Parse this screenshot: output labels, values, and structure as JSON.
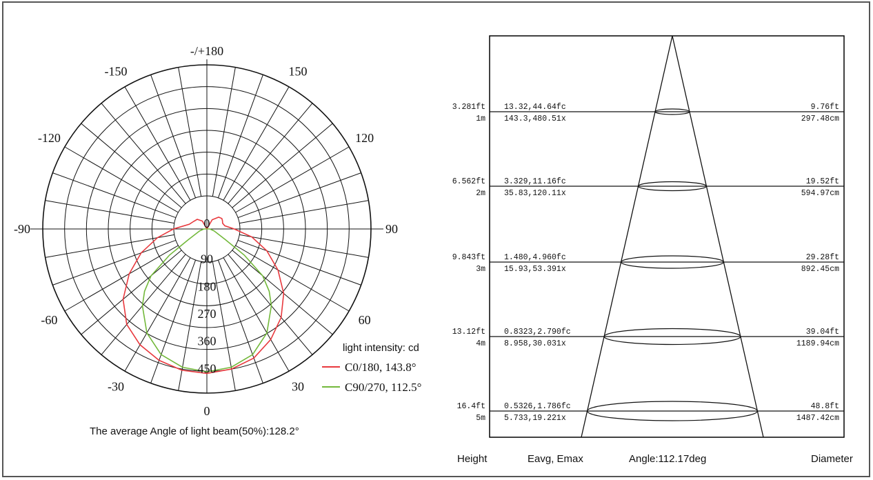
{
  "chart_data": [
    {
      "type": "polar",
      "angle_labels": [
        {
          "text": "-/+180",
          "deg": 180
        },
        {
          "text": "150",
          "deg": 150
        },
        {
          "text": "120",
          "deg": 120
        },
        {
          "text": "90",
          "deg": 90
        },
        {
          "text": "60",
          "deg": 60
        },
        {
          "text": "30",
          "deg": 30
        },
        {
          "text": "0",
          "deg": 0
        },
        {
          "text": "-30",
          "deg": -30
        },
        {
          "text": "-60",
          "deg": -60
        },
        {
          "text": "-90",
          "deg": -90
        },
        {
          "text": "-120",
          "deg": -120
        },
        {
          "text": "-150",
          "deg": -150
        }
      ],
      "radial_ticks": [
        "0",
        "90",
        "180",
        "270",
        "360",
        "450"
      ],
      "radial_max": 540,
      "legend_title": "light intensity:  cd",
      "series": [
        {
          "name": "C0/180, 143.8°",
          "color": "#e8383d",
          "points": [
            [
              0,
              475
            ],
            [
              10,
              468
            ],
            [
              20,
              452
            ],
            [
              30,
              420
            ],
            [
              40,
              380
            ],
            [
              50,
              330
            ],
            [
              60,
              270
            ],
            [
              70,
              210
            ],
            [
              80,
              150
            ],
            [
              90,
              90
            ],
            [
              100,
              60
            ],
            [
              110,
              55
            ],
            [
              118,
              58
            ],
            [
              125,
              60
            ],
            [
              135,
              55
            ],
            [
              150,
              35
            ],
            [
              180,
              0
            ],
            [
              -150,
              30
            ],
            [
              -135,
              45
            ],
            [
              -120,
              50
            ],
            [
              -105,
              60
            ],
            [
              -90,
              110
            ],
            [
              -80,
              165
            ],
            [
              -70,
              230
            ],
            [
              -60,
              295
            ],
            [
              -50,
              360
            ],
            [
              -40,
              410
            ],
            [
              -30,
              440
            ],
            [
              -20,
              460
            ],
            [
              -10,
              472
            ],
            [
              0,
              475
            ]
          ]
        },
        {
          "name": "C90/270, 112.5°",
          "color": "#72b83a",
          "points": [
            [
              0,
              470
            ],
            [
              10,
              462
            ],
            [
              20,
              440
            ],
            [
              30,
              395
            ],
            [
              40,
              330
            ],
            [
              45,
              290
            ],
            [
              50,
              240
            ],
            [
              55,
              150
            ],
            [
              60,
              70
            ],
            [
              75,
              25
            ],
            [
              90,
              10
            ],
            [
              180,
              0
            ],
            [
              -90,
              10
            ],
            [
              -75,
              25
            ],
            [
              -60,
              70
            ],
            [
              -55,
              150
            ],
            [
              -50,
              240
            ],
            [
              -45,
              290
            ],
            [
              -40,
              330
            ],
            [
              -30,
              395
            ],
            [
              -20,
              440
            ],
            [
              -10,
              462
            ],
            [
              0,
              470
            ]
          ]
        }
      ],
      "caption": "The average Angle of light beam(50%):128.2°"
    },
    {
      "type": "beam_cone",
      "rows": [
        {
          "height_ft": "3.281ft",
          "height_m": "1m",
          "fc": "13.32,44.64fc",
          "lx": "143.3,480.51x",
          "diameter_ft": "9.76ft",
          "diameter_cm": "297.48cm"
        },
        {
          "height_ft": "6.562ft",
          "height_m": "2m",
          "fc": "3.329,11.16fc",
          "lx": "35.83,120.11x",
          "diameter_ft": "19.52ft",
          "diameter_cm": "594.97cm"
        },
        {
          "height_ft": "9.843ft",
          "height_m": "3m",
          "fc": "1.480,4.960fc",
          "lx": "15.93,53.391x",
          "diameter_ft": "29.28ft",
          "diameter_cm": "892.45cm"
        },
        {
          "height_ft": "13.12ft",
          "height_m": "4m",
          "fc": "0.8323,2.790fc",
          "lx": "8.958,30.031x",
          "diameter_ft": "39.04ft",
          "diameter_cm": "1189.94cm"
        },
        {
          "height_ft": "16.4ft",
          "height_m": "5m",
          "fc": "0.5326,1.786fc",
          "lx": "5.733,19.221x",
          "diameter_ft": "48.8ft",
          "diameter_cm": "1487.42cm"
        }
      ],
      "footer": {
        "height": "Height",
        "eavg_emax": "Eavg, Emax",
        "angle": "Angle:112.17deg",
        "diameter": "Diameter"
      }
    }
  ]
}
